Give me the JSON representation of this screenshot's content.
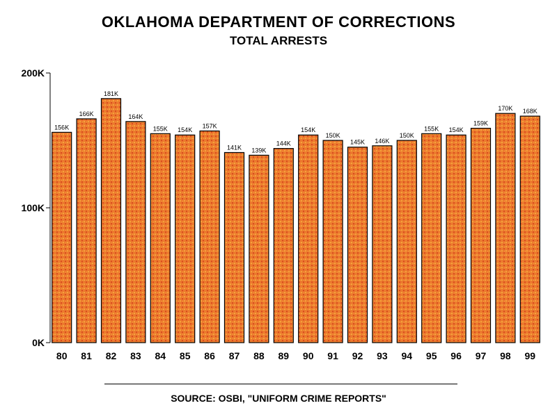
{
  "chart_data": {
    "type": "bar",
    "title": "OKLAHOMA DEPARTMENT OF CORRECTIONS",
    "subtitle": "TOTAL ARRESTS",
    "categories": [
      "80",
      "81",
      "82",
      "83",
      "84",
      "85",
      "86",
      "87",
      "88",
      "89",
      "90",
      "91",
      "92",
      "93",
      "94",
      "95",
      "96",
      "97",
      "98",
      "99"
    ],
    "values": [
      156000,
      166000,
      181000,
      164000,
      155000,
      154000,
      157000,
      141000,
      139000,
      144000,
      154000,
      150000,
      145000,
      146000,
      150000,
      155000,
      154000,
      159000,
      170000,
      168000
    ],
    "data_labels": [
      "156K",
      "166K",
      "181K",
      "164K",
      "155K",
      "154K",
      "157K",
      "141K",
      "139K",
      "144K",
      "154K",
      "150K",
      "145K",
      "146K",
      "150K",
      "155K",
      "154K",
      "159K",
      "170K",
      "168K"
    ],
    "y_ticks": [
      {
        "value": 0,
        "label": "0K"
      },
      {
        "value": 100000,
        "label": "100K"
      },
      {
        "value": 200000,
        "label": "200K"
      }
    ],
    "ylim": [
      0,
      200000
    ],
    "grid": false,
    "legend": "none",
    "bar_color": "#ec7a2e",
    "bar_highlight": "#f5a53c",
    "bar_shadow": "#d94c1e"
  },
  "source": "SOURCE:  OSBI, \"UNIFORM CRIME REPORTS\""
}
